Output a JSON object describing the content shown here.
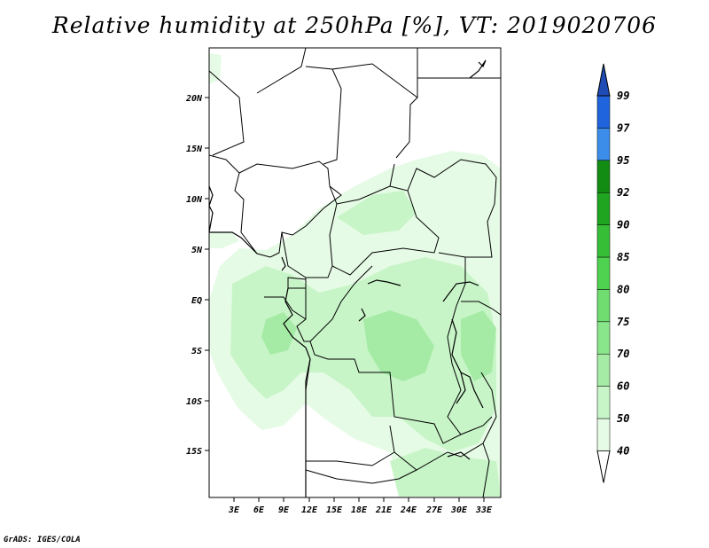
{
  "title": "Relative humidity at 250hPa [%], VT: 2019020706",
  "credit": "GrADS: IGES/COLA",
  "map": {
    "lat_labels": [
      "20N",
      "15N",
      "10N",
      "5N",
      "EQ",
      "5S",
      "10S",
      "15S"
    ],
    "lon_labels": [
      "3E",
      "6E",
      "9E",
      "12E",
      "15E",
      "18E",
      "21E",
      "24E",
      "27E",
      "30E",
      "33E"
    ]
  },
  "colorbar": {
    "levels": [
      "40",
      "50",
      "60",
      "70",
      "75",
      "80",
      "85",
      "90",
      "92",
      "95",
      "97",
      "99"
    ],
    "colors": [
      "#ffffff",
      "#e6fbe6",
      "#c8f5c8",
      "#a5eba5",
      "#8ae68a",
      "#6fdd6f",
      "#4fd24f",
      "#37be37",
      "#1fa51f",
      "#128c12",
      "#3c8cea",
      "#1f64dc",
      "#1e4bb4"
    ]
  }
}
